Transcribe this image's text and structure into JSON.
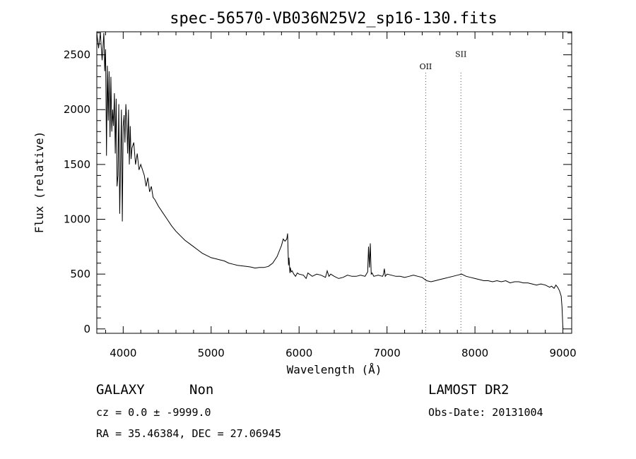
{
  "chart_data": {
    "type": "line",
    "title": "spec-56570-VB036N25V2_sp16-130.fits",
    "xlabel": "Wavelength (Å)",
    "ylabel": "Flux (relative)",
    "xlim": [
      3700,
      9100
    ],
    "ylim": [
      -40,
      2710
    ],
    "x_ticks": [
      4000,
      5000,
      6000,
      7000,
      8000,
      9000
    ],
    "y_ticks": [
      0,
      500,
      1000,
      1500,
      2000,
      2500
    ],
    "grid": false,
    "series": [
      {
        "x": [
          3700,
          3720,
          3740,
          3760,
          3780,
          3790,
          3800,
          3810,
          3820,
          3830,
          3840,
          3850,
          3860,
          3870,
          3880,
          3890,
          3900,
          3910,
          3920,
          3930,
          3940,
          3950,
          3960,
          3970,
          3980,
          3990,
          4000,
          4010,
          4020,
          4030,
          4040,
          4050,
          4060,
          4070,
          4080,
          4090,
          4100,
          4120,
          4140,
          4160,
          4180,
          4200,
          4220,
          4240,
          4260,
          4280,
          4300,
          4320,
          4340,
          4360,
          4380,
          4400,
          4450,
          4500,
          4550,
          4600,
          4650,
          4700,
          4750,
          4800,
          4850,
          4900,
          4950,
          5000,
          5050,
          5100,
          5150,
          5200,
          5250,
          5300,
          5350,
          5400,
          5450,
          5500,
          5550,
          5600,
          5650,
          5700,
          5750,
          5780,
          5800,
          5820,
          5840,
          5860,
          5870,
          5875,
          5880,
          5885,
          5890,
          5895,
          5900,
          5910,
          5920,
          5940,
          5960,
          5980,
          6000,
          6050,
          6080,
          6100,
          6150,
          6200,
          6250,
          6300,
          6320,
          6340,
          6360,
          6400,
          6450,
          6500,
          6550,
          6600,
          6650,
          6700,
          6750,
          6780,
          6790,
          6800,
          6810,
          6820,
          6830,
          6850,
          6900,
          6950,
          6960,
          6970,
          6980,
          7000,
          7050,
          7100,
          7150,
          7200,
          7250,
          7300,
          7350,
          7400,
          7450,
          7500,
          7550,
          7600,
          7650,
          7700,
          7750,
          7800,
          7850,
          7900,
          7950,
          8000,
          8050,
          8100,
          8150,
          8200,
          8250,
          8300,
          8350,
          8400,
          8450,
          8500,
          8550,
          8600,
          8650,
          8700,
          8750,
          8800,
          8850,
          8870,
          8900,
          8920,
          8940,
          8960,
          8980,
          8990,
          9000
        ],
        "y": [
          2700,
          2560,
          2700,
          2450,
          2700,
          2350,
          2550,
          1580,
          2400,
          1900,
          2350,
          1750,
          2300,
          1800,
          2000,
          1850,
          2150,
          1600,
          2100,
          1300,
          1400,
          2050,
          1050,
          1500,
          2000,
          980,
          1850,
          1950,
          1700,
          2050,
          1900,
          1600,
          2000,
          1500,
          1850,
          1550,
          1650,
          1700,
          1500,
          1600,
          1450,
          1500,
          1450,
          1400,
          1300,
          1380,
          1250,
          1300,
          1200,
          1180,
          1150,
          1120,
          1060,
          1000,
          940,
          890,
          850,
          810,
          780,
          750,
          720,
          690,
          670,
          650,
          640,
          630,
          620,
          600,
          590,
          580,
          575,
          570,
          565,
          555,
          560,
          560,
          570,
          600,
          660,
          720,
          760,
          820,
          800,
          820,
          870,
          700,
          580,
          650,
          600,
          510,
          560,
          520,
          530,
          500,
          480,
          510,
          500,
          490,
          460,
          510,
          480,
          500,
          490,
          470,
          530,
          480,
          500,
          480,
          460,
          470,
          490,
          480,
          480,
          490,
          480,
          520,
          750,
          560,
          780,
          500,
          510,
          480,
          490,
          480,
          500,
          550,
          480,
          500,
          490,
          480,
          480,
          470,
          480,
          490,
          480,
          470,
          440,
          430,
          440,
          450,
          460,
          470,
          480,
          490,
          500,
          480,
          470,
          460,
          450,
          440,
          440,
          430,
          440,
          430,
          440,
          420,
          430,
          430,
          420,
          420,
          410,
          400,
          410,
          400,
          380,
          390,
          370,
          400,
          380,
          350,
          300,
          200,
          0
        ]
      }
    ],
    "annotations": [
      {
        "label": "OII",
        "x": 7440,
        "text_y": 2370
      },
      {
        "label": "SII",
        "x": 7840,
        "text_y": 2480
      }
    ]
  },
  "footer": {
    "object_class": "GALAXY",
    "subclass": "Non",
    "survey": "LAMOST DR2",
    "cz": "cz = 0.0 ± -9999.0",
    "obs_date": "Obs-Date: 20131004",
    "radec": "RA =  35.46384, DEC =  27.06945"
  }
}
